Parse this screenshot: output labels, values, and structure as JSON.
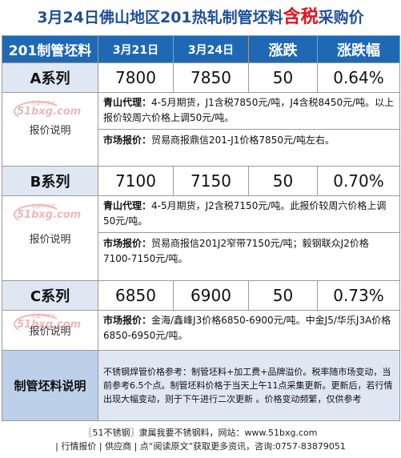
{
  "title": {
    "main": "3月24日佛山地区201热轧制管坯料",
    "highlight": "含税",
    "suffix": "采购价"
  },
  "header": {
    "col0": "201制管坯料",
    "col1": "3月21日",
    "col2": "3月24日",
    "col3": "涨跌",
    "col4": "涨跌幅"
  },
  "series_a": {
    "name": "A系列",
    "prev": "7800",
    "curr": "7850",
    "change": "50",
    "pct": "0.64%",
    "note_label": "报价说明",
    "qs_label": "青山代理：",
    "qs_text": "4-5月期货，J1含税7850元/吨，J4含税8450元/吨。以上报价较周六价格上调50元/吨。",
    "mkt_label": "市场报价：",
    "mkt_text": "贸易商报鼎信201-J1价格7850元/吨左右。"
  },
  "series_b": {
    "name": "B系列",
    "prev": "7100",
    "curr": "7150",
    "change": "50",
    "pct": "0.70%",
    "note_label": "报价说明",
    "qs_label": "青山代理：",
    "qs_text": "4-5月期货，J2含税7150元/吨。此报价较周六价格上调50元/吨。",
    "mkt_label": "市场报价：",
    "mkt_text": "贸易商报信201J2窄带7150元/吨；毅钢联众J2价格7100-7150元/吨。"
  },
  "series_c": {
    "name": "C系列",
    "prev": "6850",
    "curr": "6900",
    "change": "50",
    "pct": "0.73%",
    "note_label": "报价说明",
    "mkt_label": "市场报价：",
    "mkt_text": "金海/鑫峰J3价格6850-6900元/吨。中金J5/华乐J3A价格6850-6950元/吨。"
  },
  "explain": {
    "label": "制管坯料说明",
    "text": "不锈钢焊管价格参考：制管坯料+加工费+品牌溢价。税率随市场变动，当前参考6.5个点。制管坯料价格于当天上午11点采集更新。更新后，若行情出现大幅变动，则于下午进行二次更新 。价格变动频繁，仅供参考"
  },
  "footer": {
    "line1": "〖51不锈钢〗隶属我要不锈钢料，网站：www.51bxg.com",
    "line2": "| 行情报价 | 供应商 | 点“阅读原文”获取更多资讯，咨询:0757-83879051"
  },
  "watermark": {
    "small": "我要不锈钢",
    "big": "51bxg.com"
  },
  "colors": {
    "title_blue": "#1f4f9c",
    "title_red": "#e0141e",
    "header_bg": "#1f69b4",
    "label_bg": "#dfe7f3",
    "explain_bg": "#bcd0ea"
  }
}
